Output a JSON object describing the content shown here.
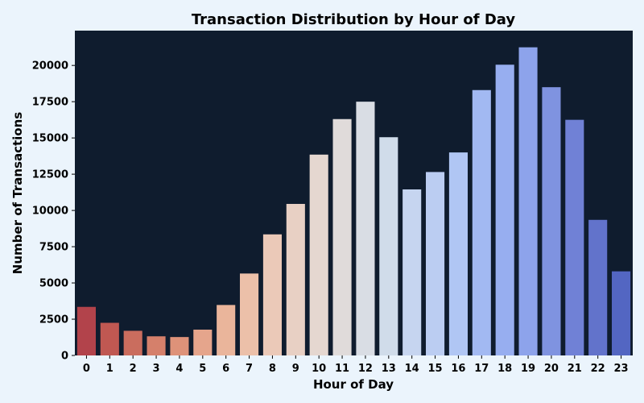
{
  "chart_data": {
    "type": "bar",
    "title": "Transaction Distribution by Hour of Day",
    "xlabel": "Hour of Day",
    "ylabel": "Number of Transactions",
    "categories": [
      "0",
      "1",
      "2",
      "3",
      "4",
      "5",
      "6",
      "7",
      "8",
      "9",
      "10",
      "11",
      "12",
      "13",
      "14",
      "15",
      "16",
      "17",
      "18",
      "19",
      "20",
      "21",
      "22",
      "23"
    ],
    "values": [
      3350,
      2250,
      1700,
      1320,
      1270,
      1780,
      3480,
      5650,
      8350,
      10450,
      13850,
      16300,
      17500,
      15050,
      11450,
      12650,
      14000,
      18300,
      20050,
      21250,
      18500,
      16250,
      9350,
      5800
    ],
    "ylim": [
      0,
      22400
    ],
    "yticks": [
      0,
      2500,
      5000,
      7500,
      10000,
      12500,
      15000,
      17500,
      20000
    ],
    "grid": false,
    "colors": {
      "plot_background": "#0f1c2e",
      "page_background": "#ebf4fc",
      "bars": [
        "#b2434b",
        "#c05852",
        "#ca6d5e",
        "#d5806b",
        "#de9279",
        "#e5a58c",
        "#eab59b",
        "#ecc0a9",
        "#ebc9b8",
        "#e8d0c4",
        "#e5d7d0",
        "#e0dbda",
        "#d9dde4",
        "#d0dcea",
        "#c6d5f0",
        "#bbcdf2",
        "#b0c6f4",
        "#a2b9f2",
        "#97aef0",
        "#8da3eb",
        "#7f93e0",
        "#7081d6",
        "#6273cb",
        "#5366c2"
      ]
    }
  }
}
